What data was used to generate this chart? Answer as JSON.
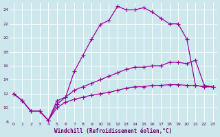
{
  "background_color": "#cce8ec",
  "line_color": "#990099",
  "grid_color": "#ffffff",
  "xlabel": "Windchill (Refroidissement éolien,°C)",
  "xlabel_color": "#660066",
  "xtick_color": "#660066",
  "ytick_color": "#660066",
  "xlim": [
    -0.5,
    23.5
  ],
  "ylim": [
    8,
    25
  ],
  "yticks": [
    8,
    10,
    12,
    14,
    16,
    18,
    20,
    22,
    24
  ],
  "xticks": [
    0,
    1,
    2,
    3,
    4,
    5,
    6,
    7,
    8,
    9,
    10,
    11,
    12,
    13,
    14,
    15,
    16,
    17,
    18,
    19,
    20,
    21,
    22,
    23
  ],
  "line1_x": [
    0,
    1,
    2,
    3,
    4,
    5,
    6,
    7,
    8,
    9,
    10,
    11,
    12,
    13,
    14,
    15,
    16,
    17,
    18,
    19,
    20,
    21,
    22,
    23
  ],
  "line1_y": [
    12,
    11,
    9.5,
    9.5,
    8.2,
    11,
    11.5,
    15.2,
    17.5,
    19.8,
    21.9,
    22.5,
    24.5,
    24.0,
    24.0,
    24.3,
    23.7,
    22.8,
    22.0,
    22.0,
    19.8,
    13.2,
    13.0,
    13.0
  ],
  "line2_x": [
    0,
    1,
    2,
    3,
    4,
    5,
    6,
    7,
    8,
    9,
    10,
    11,
    12,
    13,
    14,
    15,
    16,
    17,
    18,
    19,
    20,
    21,
    22,
    23
  ],
  "line2_y": [
    12,
    11,
    9.5,
    9.5,
    8.2,
    10.5,
    11.5,
    12.5,
    13.0,
    13.5,
    14.0,
    14.5,
    15.0,
    15.5,
    15.8,
    15.8,
    16.0,
    16.0,
    16.5,
    16.5,
    16.3,
    16.8,
    13.2,
    13.0
  ],
  "line3_x": [
    0,
    1,
    2,
    3,
    4,
    5,
    6,
    7,
    8,
    9,
    10,
    11,
    12,
    13,
    14,
    15,
    16,
    17,
    18,
    19,
    20,
    21,
    22,
    23
  ],
  "line3_y": [
    12,
    11,
    9.5,
    9.5,
    8.2,
    10.0,
    10.8,
    11.2,
    11.5,
    11.8,
    12.0,
    12.2,
    12.5,
    12.8,
    13.0,
    13.0,
    13.2,
    13.2,
    13.3,
    13.3,
    13.2,
    13.2,
    13.0,
    13.0
  ]
}
